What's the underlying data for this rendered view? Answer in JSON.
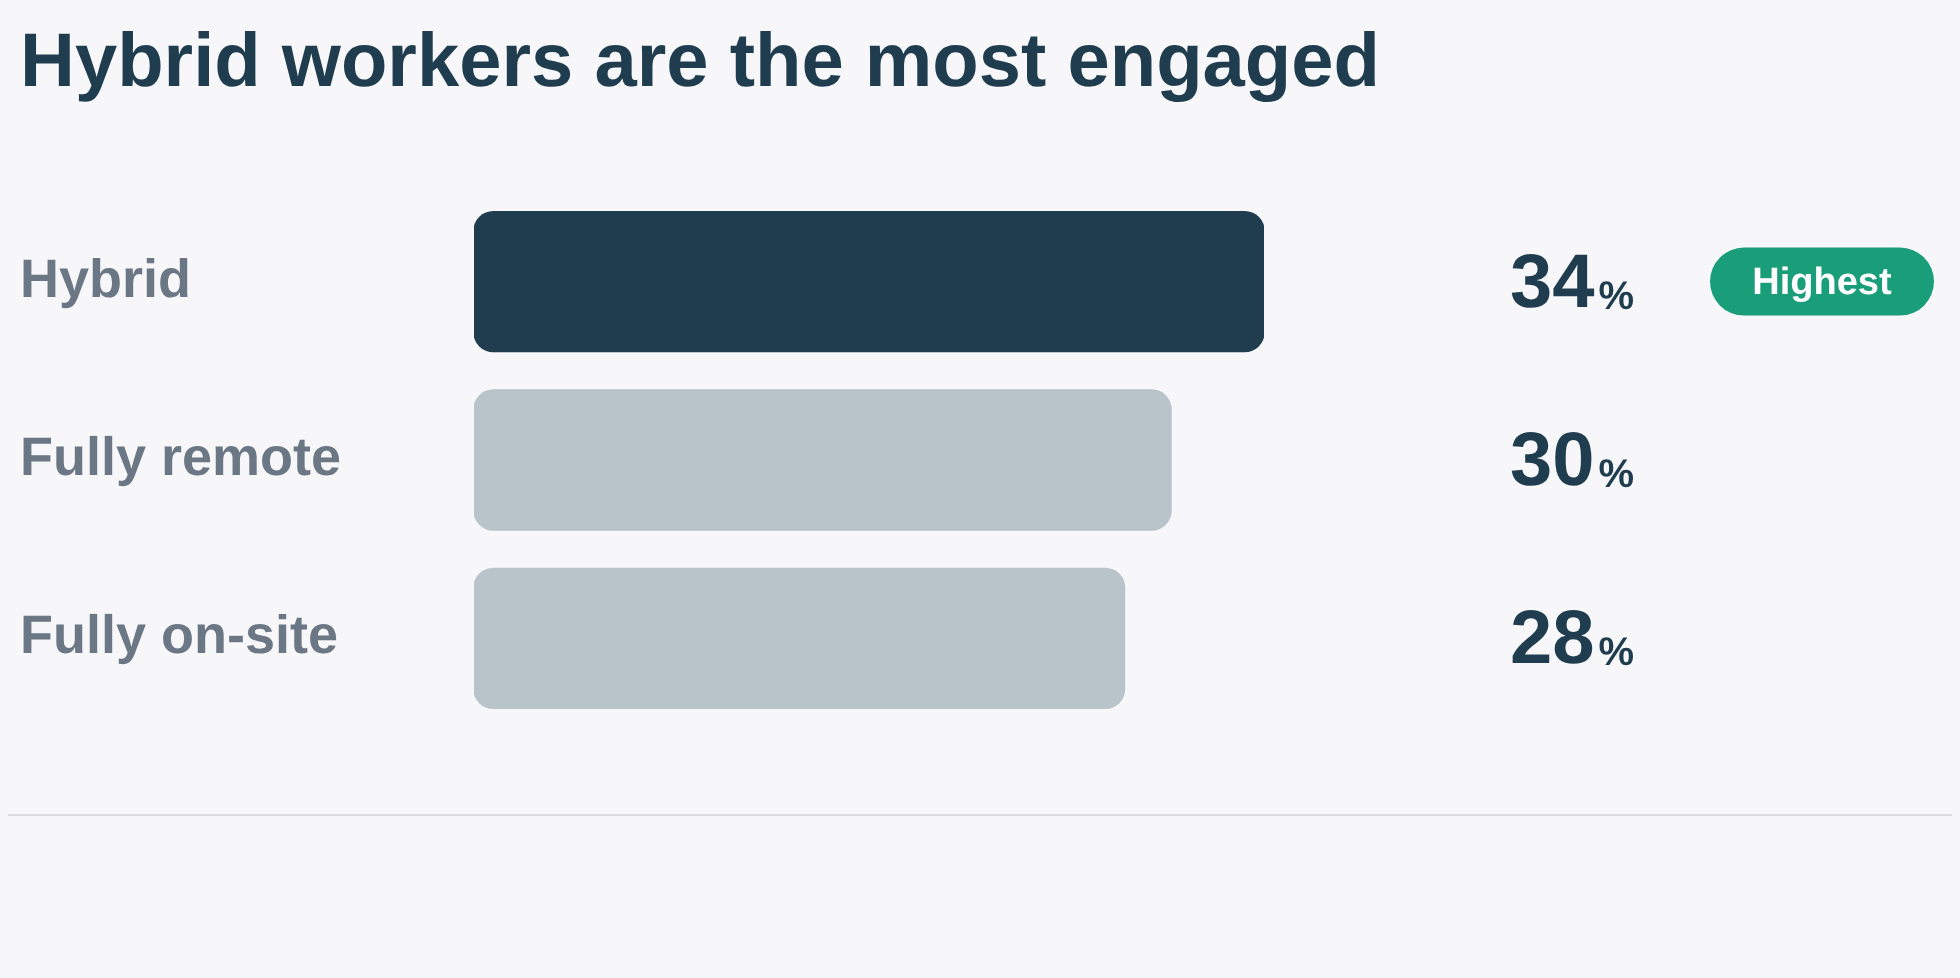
{
  "chart_data": {
    "type": "bar",
    "orientation": "horizontal",
    "title": "Hybrid workers are the most engaged",
    "categories": [
      "Hybrid",
      "Fully remote",
      "Fully on-site"
    ],
    "values": [
      34,
      30,
      28
    ],
    "colors": [
      "#1f3d4f",
      "#b8c4c9",
      "#b8c4c9"
    ],
    "value_labels": [
      "34%",
      "30%",
      "28%"
    ],
    "annotations": [
      "Highest"
    ],
    "grid": false,
    "legend": false
  }
}
